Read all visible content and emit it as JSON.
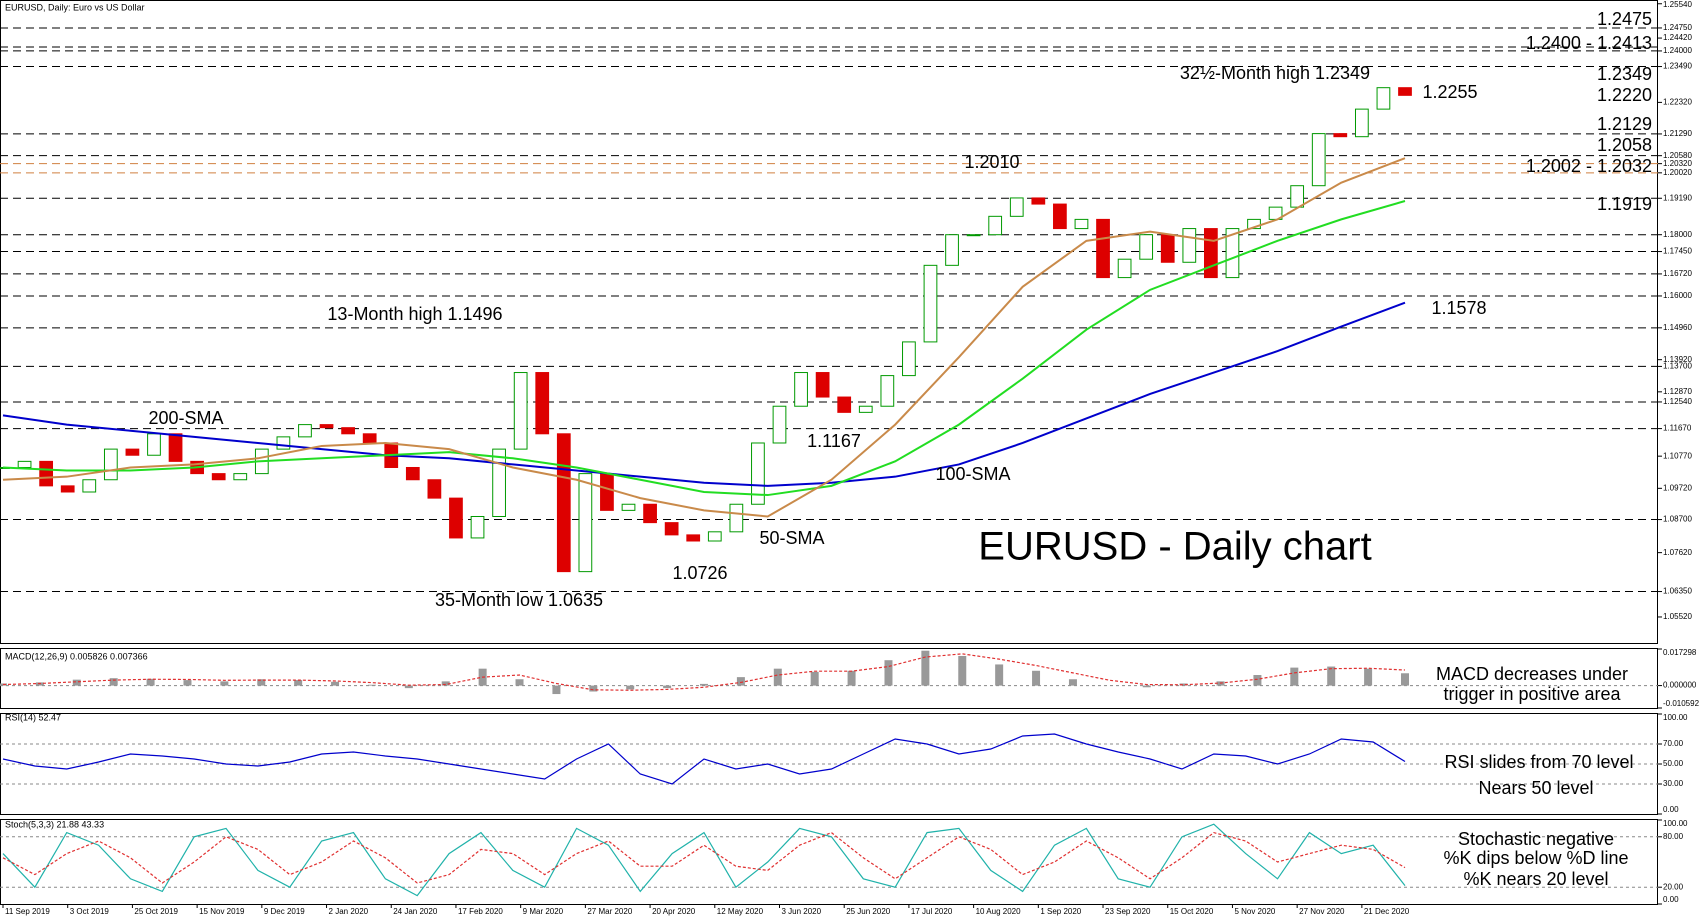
{
  "chart_data": [
    {
      "type": "candlestick",
      "title": "EURUSD, Daily: Euro vs US Dollar",
      "ylim": [
        1.0467,
        1.2563
      ],
      "yticks": [
        {
          "value": 1.2554,
          "label": "1.25540"
        },
        {
          "value": 1.2475,
          "label": "1.24750"
        },
        {
          "value": 1.2442,
          "label": "1.24420"
        },
        {
          "value": 1.24,
          "label": "1.24000"
        },
        {
          "value": 1.2349,
          "label": "1.23490"
        },
        {
          "value": 1.2232,
          "label": "1.22320"
        },
        {
          "value": 1.2129,
          "label": "1.21290"
        },
        {
          "value": 1.2058,
          "label": "1.20580"
        },
        {
          "value": 1.2032,
          "label": "1.20320"
        },
        {
          "value": 1.2002,
          "label": "1.20020"
        },
        {
          "value": 1.1919,
          "label": "1.19190"
        },
        {
          "value": 1.18,
          "label": "1.18000"
        },
        {
          "value": 1.1745,
          "label": "1.17450"
        },
        {
          "value": 1.1672,
          "label": "1.16720"
        },
        {
          "value": 1.16,
          "label": "1.16000"
        },
        {
          "value": 1.1496,
          "label": "1.14960"
        },
        {
          "value": 1.1392,
          "label": "1.13920"
        },
        {
          "value": 1.137,
          "label": "1.13700"
        },
        {
          "value": 1.1287,
          "label": "1.12870"
        },
        {
          "value": 1.1254,
          "label": "1.12540"
        },
        {
          "value": 1.1167,
          "label": "1.11670"
        },
        {
          "value": 1.1077,
          "label": "1.10770"
        },
        {
          "value": 1.0972,
          "label": "1.09720"
        },
        {
          "value": 1.087,
          "label": "1.08700"
        },
        {
          "value": 1.0762,
          "label": "1.07620"
        },
        {
          "value": 1.0635,
          "label": "1.06350"
        },
        {
          "value": 1.0552,
          "label": "1.05520"
        }
      ],
      "levels": [
        {
          "value": 1.2475,
          "color": "#000000"
        },
        {
          "value": 1.2413,
          "color": "#000000"
        },
        {
          "value": 1.24,
          "color": "#000000"
        },
        {
          "value": 1.2349,
          "color": "#000000"
        },
        {
          "value": 1.2129,
          "color": "#000000"
        },
        {
          "value": 1.2058,
          "color": "#000000"
        },
        {
          "value": 1.2032,
          "color": "#d08040"
        },
        {
          "value": 1.2002,
          "color": "#d08040"
        },
        {
          "value": 1.1919,
          "color": "#000000"
        },
        {
          "value": 1.18,
          "color": "#000000"
        },
        {
          "value": 1.1745,
          "color": "#000000"
        },
        {
          "value": 1.1672,
          "color": "#000000"
        },
        {
          "value": 1.16,
          "color": "#000000"
        },
        {
          "value": 1.1496,
          "color": "#000000"
        },
        {
          "value": 1.137,
          "color": "#000000"
        },
        {
          "value": 1.1254,
          "color": "#000000"
        },
        {
          "value": 1.1167,
          "color": "#000000"
        },
        {
          "value": 1.087,
          "color": "#000000"
        },
        {
          "value": 1.0635,
          "color": "#000000"
        }
      ],
      "up_color": "#009900",
      "down_color": "#dd0000",
      "values": [
        1.104,
        1.106,
        1.098,
        1.096,
        1.1,
        1.11,
        1.108,
        1.115,
        1.106,
        1.102,
        1.1,
        1.102,
        1.11,
        1.114,
        1.118,
        1.117,
        1.115,
        1.112,
        1.104,
        1.1,
        1.094,
        1.081,
        1.088,
        1.11,
        1.135,
        1.115,
        1.07,
        1.102,
        1.09,
        1.092,
        1.086,
        1.082,
        1.08,
        1.083,
        1.092,
        1.112,
        1.124,
        1.135,
        1.127,
        1.122,
        1.124,
        1.134,
        1.145,
        1.17,
        1.18,
        1.18,
        1.186,
        1.192,
        1.19,
        1.182,
        1.185,
        1.166,
        1.172,
        1.18,
        1.171,
        1.182,
        1.166,
        1.182,
        1.185,
        1.189,
        1.196,
        1.213,
        1.212,
        1.221,
        1.228,
        1.2255
      ],
      "series": [
        {
          "name": "200-SMA",
          "color": "#0000cc",
          "values": [
            1.121,
            1.118,
            1.116,
            1.114,
            1.112,
            1.11,
            1.108,
            1.107,
            1.105,
            1.103,
            1.101,
            1.099,
            1.098,
            1.099,
            1.101,
            1.105,
            1.112,
            1.12,
            1.128,
            1.135,
            1.142,
            1.15,
            1.1578
          ]
        },
        {
          "name": "100-SMA",
          "color": "#22dd22",
          "values": [
            1.104,
            1.103,
            1.103,
            1.104,
            1.106,
            1.107,
            1.108,
            1.109,
            1.107,
            1.104,
            1.1,
            1.096,
            1.095,
            1.098,
            1.106,
            1.118,
            1.133,
            1.149,
            1.162,
            1.17,
            1.178,
            1.185,
            1.191
          ]
        },
        {
          "name": "50-SMA",
          "color": "#c98a4a",
          "values": [
            1.1,
            1.101,
            1.104,
            1.105,
            1.107,
            1.111,
            1.112,
            1.11,
            1.104,
            1.1,
            1.094,
            1.09,
            1.088,
            1.1,
            1.118,
            1.14,
            1.163,
            1.178,
            1.181,
            1.178,
            1.185,
            1.197,
            1.205
          ]
        }
      ],
      "annotations": [
        {
          "text": "32½-Month high 1.2349",
          "color": "#000000"
        },
        {
          "text": "1.2010",
          "color": "#000000"
        },
        {
          "text": "13-Month high 1.1496",
          "color": "#000000"
        },
        {
          "text": "1.1167",
          "color": "#000000"
        },
        {
          "text": "1.0726",
          "color": "#000000"
        },
        {
          "text": "35-Month low 1.0635",
          "color": "#000000"
        },
        {
          "text": "EURUSD - Daily chart",
          "color": "#000000"
        },
        {
          "text": "1.2475",
          "color": "#0000cc"
        },
        {
          "text": "1.2400 - 1.2413",
          "color": "#0000cc"
        },
        {
          "text": "1.2349",
          "color": "#0000cc"
        },
        {
          "text": "1.2220",
          "color": "#0000cc"
        },
        {
          "text": "1.2255",
          "color": "#e02020"
        },
        {
          "text": "1.2129",
          "color": "#e02020"
        },
        {
          "text": "1.2058",
          "color": "#e02020"
        },
        {
          "text": "1.2002 - 1.2032",
          "color": "#e02020"
        },
        {
          "text": "1.1919",
          "color": "#e02020"
        },
        {
          "text": "1.1578",
          "color": "#0000cc"
        }
      ]
    },
    {
      "type": "macd",
      "title": "MACD(12,26,9) 0.005826 0.007366",
      "ylim": [
        -0.010592,
        0.017298
      ],
      "yticks": [
        0.017298,
        {
          "value": 0,
          "label": "0.000000"
        },
        -0.010592
      ],
      "series": [
        {
          "color": "#999999",
          "values": [
            0.001,
            0.0015,
            0.0028,
            0.0035,
            0.0032,
            0.0026,
            0.002,
            0.003,
            0.0026,
            0.0018,
            0.0004,
            -0.0012,
            0.002,
            0.008,
            0.003,
            -0.004,
            -0.0028,
            -0.0018,
            -0.0012,
            0.0008,
            0.004,
            0.008,
            0.0065,
            0.007,
            0.012,
            0.0165,
            0.014,
            0.01,
            0.007,
            0.003,
            0.0,
            -0.0008,
            0.001,
            0.002,
            0.005,
            0.0085,
            0.009,
            0.008,
            0.005826
          ]
        },
        {
          "color": "#e03030",
          "values": [
            0.0005,
            0.001,
            0.0018,
            0.0026,
            0.003,
            0.0029,
            0.0025,
            0.0026,
            0.0026,
            0.0022,
            0.0014,
            0.0002,
            0.0005,
            0.004,
            0.005,
            0.001,
            -0.002,
            -0.0022,
            -0.0018,
            -0.0008,
            0.0015,
            0.005,
            0.0068,
            0.0068,
            0.009,
            0.0135,
            0.015,
            0.0125,
            0.0095,
            0.006,
            0.0025,
            0.0005,
            0.0004,
            0.0012,
            0.003,
            0.006,
            0.008,
            0.0082,
            0.007366
          ]
        }
      ],
      "annotations": [
        {
          "text": "MACD decreases under"
        },
        {
          "text": "trigger in positive area"
        }
      ]
    },
    {
      "type": "line",
      "title": "RSI(14) 52.47",
      "ylim": [
        0,
        100
      ],
      "yticks": [
        {
          "value": 100,
          "label": "100.00"
        },
        {
          "value": 70,
          "label": "70.00"
        },
        {
          "value": 50,
          "label": "50.00"
        },
        {
          "value": 30,
          "label": "30.00"
        },
        {
          "value": 0,
          "label": "0.00"
        }
      ],
      "grid": true,
      "series": [
        {
          "color": "#0000cc",
          "values": [
            55,
            48,
            45,
            52,
            60,
            58,
            55,
            50,
            48,
            52,
            60,
            62,
            58,
            55,
            50,
            45,
            40,
            35,
            55,
            70,
            40,
            30,
            55,
            45,
            50,
            40,
            45,
            60,
            75,
            70,
            60,
            65,
            78,
            80,
            70,
            62,
            55,
            45,
            60,
            58,
            50,
            60,
            75,
            72,
            52.47
          ]
        }
      ],
      "annotations": [
        {
          "text": "RSI slides from 70 level"
        },
        {
          "text": "Nears 50 level"
        }
      ]
    },
    {
      "type": "line",
      "title": "Stoch(5,3,3) 21.88 43.33",
      "ylim": [
        0,
        100
      ],
      "yticks": [
        {
          "value": 100,
          "label": "100.00"
        },
        {
          "value": 80,
          "label": "80.00"
        },
        {
          "value": 20,
          "label": "20.00"
        },
        {
          "value": 0,
          "label": "0.00"
        }
      ],
      "grid": true,
      "series": [
        {
          "color": "#20b2aa",
          "values": [
            60,
            20,
            85,
            70,
            30,
            15,
            80,
            90,
            40,
            20,
            75,
            85,
            30,
            10,
            60,
            85,
            40,
            20,
            90,
            70,
            15,
            60,
            85,
            20,
            50,
            90,
            80,
            30,
            20,
            85,
            90,
            40,
            15,
            70,
            90,
            30,
            20,
            80,
            95,
            60,
            30,
            85,
            60,
            70,
            21.88
          ]
        },
        {
          "color": "#e03030",
          "dashed": true,
          "values": [
            55,
            35,
            60,
            75,
            55,
            25,
            50,
            80,
            65,
            35,
            50,
            75,
            55,
            25,
            35,
            65,
            60,
            35,
            60,
            75,
            45,
            45,
            70,
            45,
            40,
            70,
            85,
            55,
            30,
            55,
            80,
            65,
            35,
            50,
            75,
            55,
            30,
            55,
            85,
            75,
            50,
            60,
            70,
            65,
            43.33
          ]
        }
      ],
      "annotations": [
        {
          "text": "Stochastic negative"
        },
        {
          "text": "%K dips below %D line"
        },
        {
          "text": "%K nears 20 level"
        }
      ],
      "xticks": [
        "11 Sep 2019",
        "3 Oct 2019",
        "25 Oct 2019",
        "15 Nov 2019",
        "9 Dec 2019",
        "2 Jan 2020",
        "24 Jan 2020",
        "17 Feb 2020",
        "9 Mar 2020",
        "27 Mar 2020",
        "20 Apr 2020",
        "12 May 2020",
        "3 Jun 2020",
        "25 Jun 2020",
        "17 Jul 2020",
        "10 Aug 2020",
        "1 Sep 2020",
        "23 Sep 2020",
        "15 Oct 2020",
        "5 Nov 2020",
        "27 Nov 2020",
        "21 Dec 2020"
      ]
    }
  ]
}
